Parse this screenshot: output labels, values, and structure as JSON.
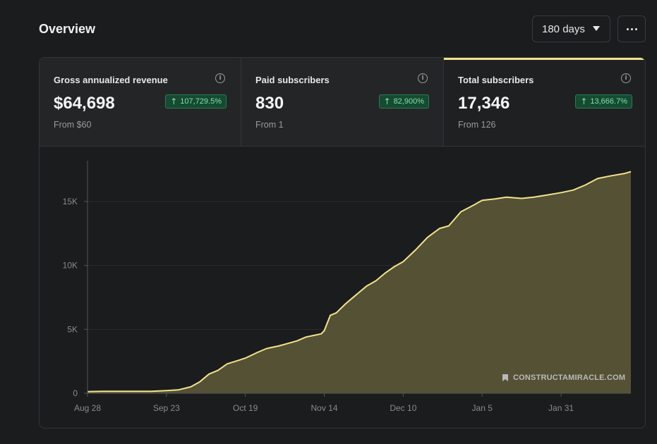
{
  "header": {
    "title": "Overview",
    "range_label": "180 days"
  },
  "metrics": [
    {
      "label": "Gross annualized revenue",
      "value": "$64,698",
      "change": "107,729.5%",
      "from": "From $60"
    },
    {
      "label": "Paid subscribers",
      "value": "830",
      "change": "82,900%",
      "from": "From 1"
    },
    {
      "label": "Total subscribers",
      "value": "17,346",
      "change": "13,666.7%",
      "from": "From 126"
    }
  ],
  "watermark": "CONSTRUCTAMIRACLE.COM",
  "colors": {
    "accent": "#f2e38c",
    "area_fill": "#5f5a3a",
    "positive": "#7fe3a8"
  },
  "chart_data": {
    "type": "area",
    "title": "",
    "xlabel": "",
    "ylabel": "",
    "x_ticks": [
      "Aug 28",
      "Sep 23",
      "Oct 19",
      "Nov 14",
      "Dec 10",
      "Jan 5",
      "Jan 31"
    ],
    "y_ticks": [
      "0",
      "5K",
      "10K",
      "15K"
    ],
    "xlim": [
      "2023-08-28",
      "2024-02-23"
    ],
    "ylim": [
      0,
      18200
    ],
    "grid": true,
    "series": [
      {
        "values": [
          [
            "2023-08-28",
            126
          ],
          [
            "2023-09-02",
            150
          ],
          [
            "2023-09-10",
            150
          ],
          [
            "2023-09-18",
            150
          ],
          [
            "2023-09-23",
            210
          ],
          [
            "2023-09-27",
            270
          ],
          [
            "2023-10-01",
            500
          ],
          [
            "2023-10-04",
            900
          ],
          [
            "2023-10-07",
            1500
          ],
          [
            "2023-10-10",
            1800
          ],
          [
            "2023-10-13",
            2300
          ],
          [
            "2023-10-17",
            2600
          ],
          [
            "2023-10-19",
            2750
          ],
          [
            "2023-10-23",
            3200
          ],
          [
            "2023-10-26",
            3500
          ],
          [
            "2023-10-30",
            3700
          ],
          [
            "2023-11-02",
            3900
          ],
          [
            "2023-11-05",
            4100
          ],
          [
            "2023-11-08",
            4400
          ],
          [
            "2023-11-11",
            4550
          ],
          [
            "2023-11-13",
            4650
          ],
          [
            "2023-11-14",
            4900
          ],
          [
            "2023-11-15",
            5500
          ],
          [
            "2023-11-16",
            6100
          ],
          [
            "2023-11-18",
            6300
          ],
          [
            "2023-11-21",
            7000
          ],
          [
            "2023-11-24",
            7600
          ],
          [
            "2023-11-28",
            8400
          ],
          [
            "2023-12-01",
            8800
          ],
          [
            "2023-12-04",
            9400
          ],
          [
            "2023-12-07",
            9900
          ],
          [
            "2023-12-10",
            10300
          ],
          [
            "2023-12-14",
            11200
          ],
          [
            "2023-12-18",
            12200
          ],
          [
            "2023-12-22",
            12900
          ],
          [
            "2023-12-25",
            13100
          ],
          [
            "2023-12-29",
            14200
          ],
          [
            "2024-01-02",
            14700
          ],
          [
            "2024-01-05",
            15100
          ],
          [
            "2024-01-09",
            15200
          ],
          [
            "2024-01-13",
            15350
          ],
          [
            "2024-01-18",
            15250
          ],
          [
            "2024-01-22",
            15350
          ],
          [
            "2024-01-26",
            15500
          ],
          [
            "2024-01-31",
            15700
          ],
          [
            "2024-02-04",
            15900
          ],
          [
            "2024-02-08",
            16300
          ],
          [
            "2024-02-12",
            16800
          ],
          [
            "2024-02-16",
            17000
          ],
          [
            "2024-02-21",
            17200
          ],
          [
            "2024-02-23",
            17346
          ]
        ]
      }
    ]
  }
}
